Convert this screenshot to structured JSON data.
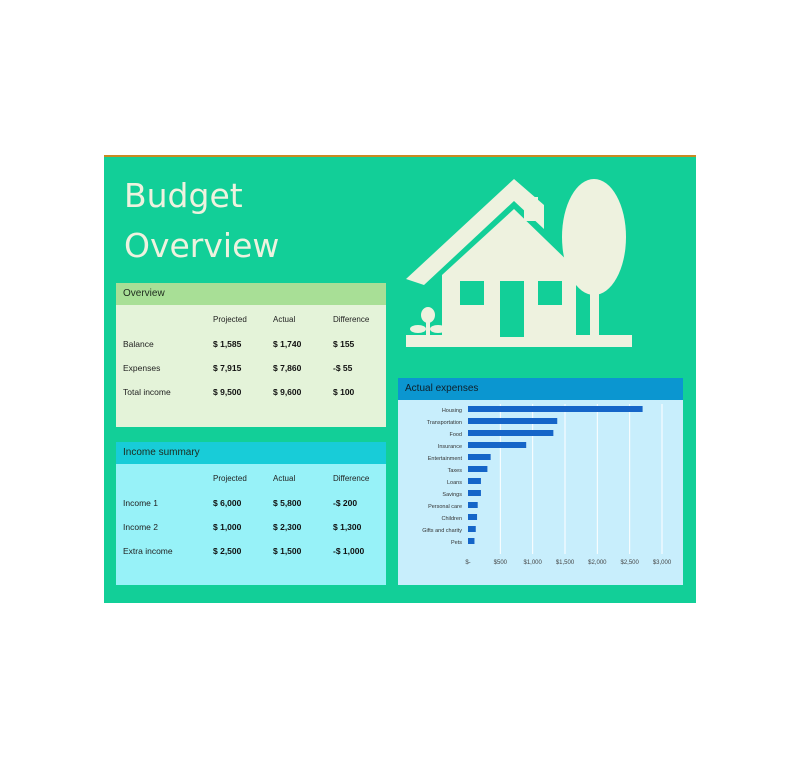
{
  "title_line1": "Budget",
  "title_line2": "Overview",
  "overview": {
    "heading": "Overview",
    "columns": [
      "Projected",
      "Actual",
      "Difference"
    ],
    "rows": [
      {
        "label": "Balance",
        "projected": "$ 1,585",
        "actual": "$ 1,740",
        "difference": "$ 155"
      },
      {
        "label": "Expenses",
        "projected": "$ 7,915",
        "actual": "$ 7,860",
        "difference": "-$ 55"
      },
      {
        "label": "Total income",
        "projected": "$ 9,500",
        "actual": "$ 9,600",
        "difference": "$ 100"
      }
    ]
  },
  "income": {
    "heading": "Income summary",
    "columns": [
      "Projected",
      "Actual",
      "Difference"
    ],
    "rows": [
      {
        "label": "Income 1",
        "projected": "$ 6,000",
        "actual": "$ 5,800",
        "difference": "-$ 200"
      },
      {
        "label": "Income 2",
        "projected": "$ 1,000",
        "actual": "$ 2,300",
        "difference": "$ 1,300"
      },
      {
        "label": "Extra income",
        "projected": "$ 2,500",
        "actual": "$ 1,500",
        "difference": "-$ 1,000"
      }
    ]
  },
  "expenses_heading": "Actual expenses",
  "chart_data": {
    "type": "bar",
    "orientation": "horizontal",
    "title": "",
    "categories": [
      "Housing",
      "Transportation",
      "Food",
      "Insurance",
      "Entertainment",
      "Taxes",
      "Loans",
      "Savings",
      "Personal care",
      "Children",
      "Gifts and charity",
      "Pets"
    ],
    "values": [
      2700,
      1380,
      1320,
      900,
      350,
      300,
      200,
      200,
      150,
      140,
      120,
      100
    ],
    "xlim": [
      0,
      3000
    ],
    "xticks": [
      "$-",
      "$500",
      "$1,000",
      "$1,500",
      "$2,000",
      "$2,500",
      "$3,000"
    ],
    "grid": true,
    "bar_color": "#1565c8"
  },
  "colors": {
    "background": "#12cf98",
    "house": "#eef2df",
    "overview_header": "#a8df96",
    "income_header": "#18ccd8",
    "expenses_header": "#0b96d0"
  }
}
